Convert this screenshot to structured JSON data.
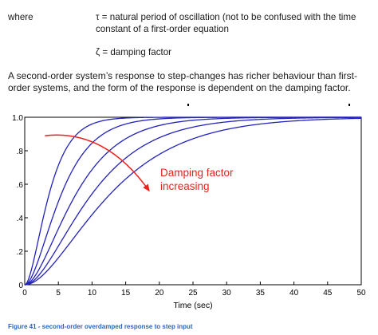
{
  "definitions": {
    "where_label": "where",
    "tau_line": "τ = natural period of oscillation (not to be confused with the time constant of a first-order equation",
    "zeta_line": "ζ = damping factor"
  },
  "paragraph": "A second-order system’s response to step-changes has richer behaviour than first-order systems, and the form of the response is dependent on the damping factor.",
  "chart_data": {
    "type": "line",
    "xlabel": "Time (sec)",
    "ylabel": "",
    "xlim": [
      0,
      50
    ],
    "ylim": [
      0,
      1.0
    ],
    "x_ticks": [
      "0",
      "5",
      "10",
      "15",
      "20",
      "25",
      "30",
      "35",
      "40",
      "45",
      "50"
    ],
    "y_ticks": [
      "0",
      ".2",
      ".4",
      ".6",
      ".8",
      "1.0"
    ],
    "grid": false,
    "series_color": "#2222bb",
    "series": [
      {
        "tau": 2.0
      },
      {
        "tau": 3.0
      },
      {
        "tau": 4.2
      },
      {
        "tau": 5.5
      },
      {
        "tau": 7.0
      }
    ],
    "annotation": {
      "text_lines": [
        "Damping factor",
        "increasing"
      ],
      "color": "#e8231b",
      "arrow_from": [
        3,
        0.89
      ],
      "arrow_to": [
        18.5,
        0.56
      ]
    }
  },
  "caption": "Figure 41 - second-order overdamped response to step input"
}
